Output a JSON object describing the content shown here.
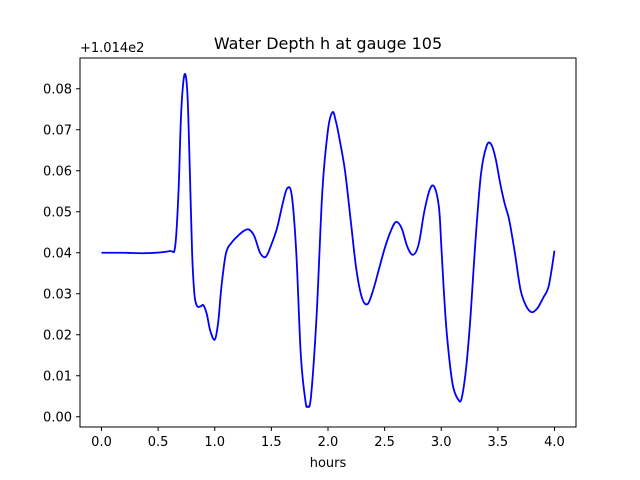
{
  "chart_data": {
    "type": "line",
    "title": "Water Depth h at gauge 105",
    "xlabel": "hours",
    "ylabel": "",
    "y_offset_label": "+1.014e2",
    "xlim": [
      -0.19,
      4.19
    ],
    "ylim": [
      -0.0025,
      0.0875
    ],
    "x_ticks": [
      0.0,
      0.5,
      1.0,
      1.5,
      2.0,
      2.5,
      3.0,
      3.5,
      4.0
    ],
    "x_tick_labels": [
      "0.0",
      "0.5",
      "1.0",
      "1.5",
      "2.0",
      "2.5",
      "3.0",
      "3.5",
      "4.0"
    ],
    "y_ticks": [
      0.0,
      0.01,
      0.02,
      0.03,
      0.04,
      0.05,
      0.06,
      0.07,
      0.08
    ],
    "y_tick_labels": [
      "0.00",
      "0.01",
      "0.02",
      "0.03",
      "0.04",
      "0.05",
      "0.06",
      "0.07",
      "0.08"
    ],
    "grid": false,
    "series": [
      {
        "color": "#0000ff",
        "x": [
          0.0,
          0.2,
          0.4,
          0.6,
          0.65,
          0.68,
          0.7,
          0.72,
          0.74,
          0.76,
          0.78,
          0.8,
          0.82,
          0.84,
          0.86,
          0.88,
          0.9,
          0.93,
          0.96,
          1.0,
          1.03,
          1.06,
          1.1,
          1.15,
          1.2,
          1.25,
          1.3,
          1.35,
          1.4,
          1.45,
          1.5,
          1.55,
          1.6,
          1.64,
          1.68,
          1.72,
          1.76,
          1.8,
          1.82,
          1.85,
          1.9,
          1.95,
          2.0,
          2.04,
          2.07,
          2.1,
          2.15,
          2.2,
          2.25,
          2.3,
          2.35,
          2.4,
          2.45,
          2.5,
          2.55,
          2.6,
          2.65,
          2.7,
          2.75,
          2.8,
          2.85,
          2.9,
          2.94,
          2.98,
          3.0,
          3.02,
          3.05,
          3.1,
          3.15,
          3.18,
          3.22,
          3.26,
          3.3,
          3.35,
          3.4,
          3.44,
          3.48,
          3.52,
          3.56,
          3.6,
          3.65,
          3.7,
          3.75,
          3.8,
          3.85,
          3.9,
          3.95,
          4.0
        ],
        "y": [
          0.04,
          0.04,
          0.0399,
          0.0404,
          0.0415,
          0.055,
          0.072,
          0.081,
          0.0835,
          0.078,
          0.06,
          0.04,
          0.03,
          0.0272,
          0.0268,
          0.027,
          0.0272,
          0.025,
          0.021,
          0.0188,
          0.023,
          0.032,
          0.04,
          0.0425,
          0.044,
          0.0452,
          0.0457,
          0.044,
          0.04,
          0.039,
          0.042,
          0.046,
          0.052,
          0.0557,
          0.054,
          0.04,
          0.015,
          0.004,
          0.0025,
          0.005,
          0.025,
          0.055,
          0.07,
          0.0743,
          0.072,
          0.068,
          0.06,
          0.048,
          0.036,
          0.029,
          0.0275,
          0.031,
          0.036,
          0.041,
          0.045,
          0.0475,
          0.046,
          0.0415,
          0.0395,
          0.042,
          0.05,
          0.0555,
          0.056,
          0.051,
          0.042,
          0.032,
          0.02,
          0.008,
          0.0042,
          0.0045,
          0.012,
          0.025,
          0.042,
          0.059,
          0.066,
          0.0665,
          0.063,
          0.057,
          0.052,
          0.048,
          0.04,
          0.031,
          0.027,
          0.0255,
          0.0265,
          0.029,
          0.032,
          0.0405
        ]
      }
    ]
  }
}
